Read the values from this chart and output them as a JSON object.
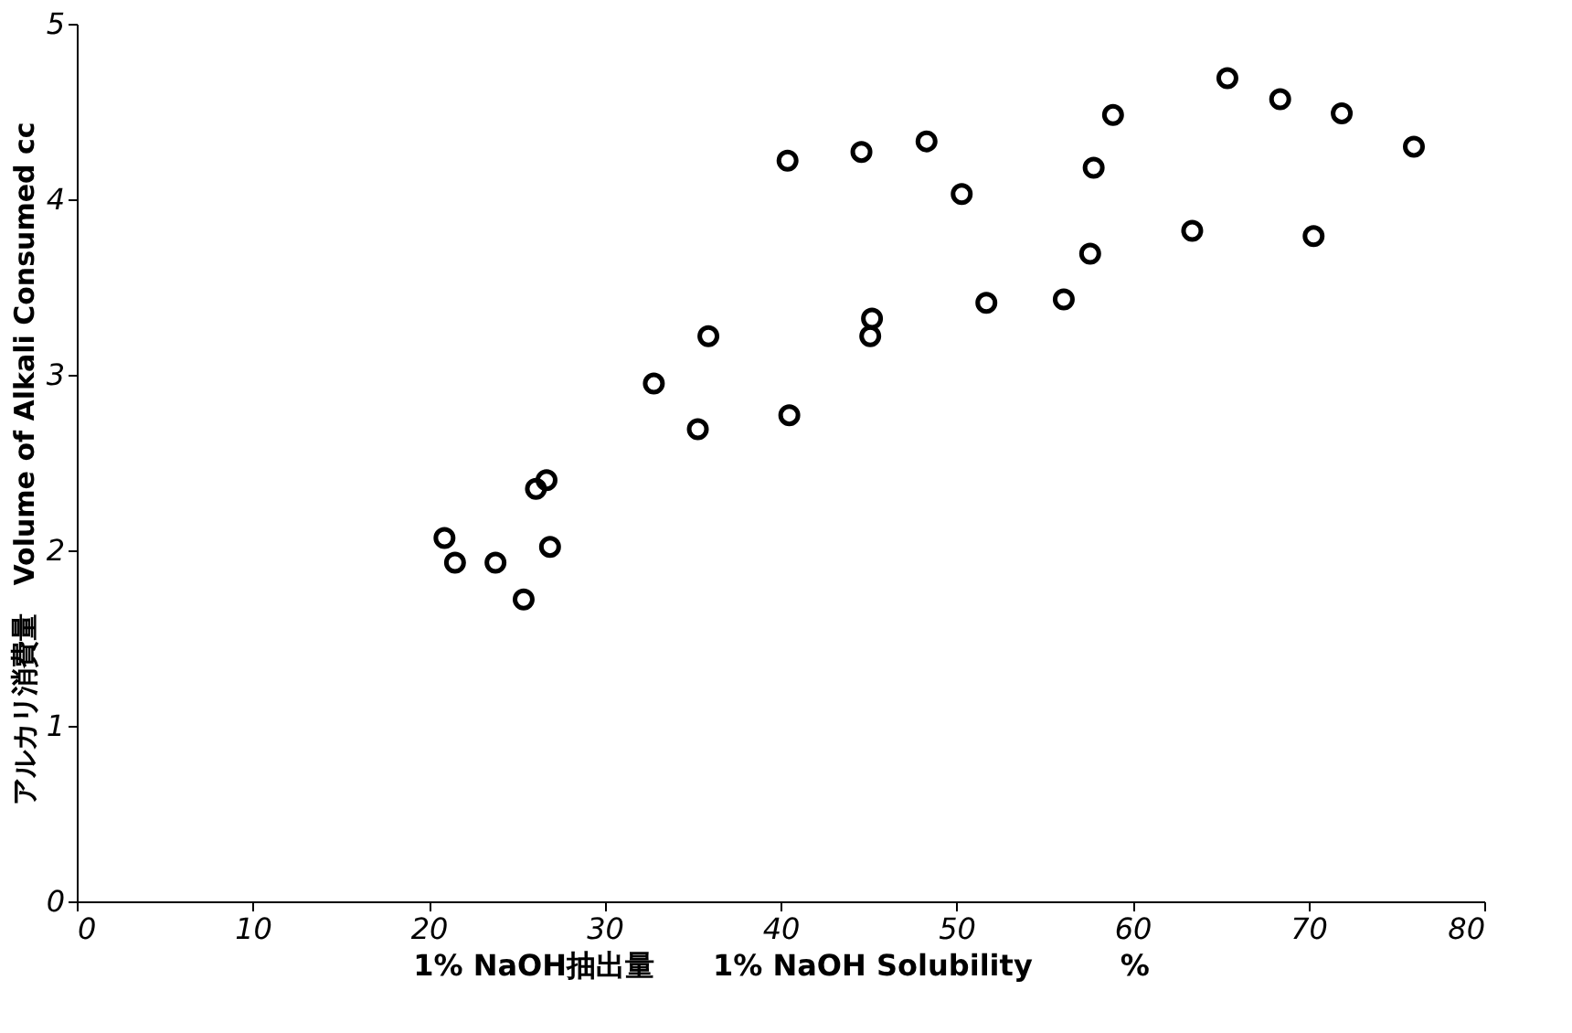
{
  "chart_data": {
    "type": "scatter",
    "xlabel": "1% NaOH抽出量　　1% NaOH Solubility　　　%",
    "ylabel": "アルカリ消費量　Volume of Alkali Consumed cc",
    "xlim": [
      0,
      80
    ],
    "xticks": [
      0,
      10,
      20,
      30,
      40,
      50,
      60,
      70,
      80
    ],
    "ylim": [
      0,
      5
    ],
    "yticks": [
      0,
      1,
      2,
      3,
      4,
      5
    ],
    "grid": false,
    "marker": "circle",
    "series": [
      {
        "color": "#000000",
        "x": [
          20.9,
          21.5,
          23.8,
          25.4,
          26.1,
          26.7,
          26.9,
          32.8,
          35.3,
          35.9,
          40.5,
          40.4,
          44.6,
          48.3,
          50.3,
          45.2,
          45.1,
          51.7,
          56.1,
          57.6,
          57.8,
          58.9,
          63.4,
          65.4,
          68.4,
          71.9,
          70.3,
          76.0
        ],
        "values": [
          2.07,
          1.93,
          1.93,
          1.72,
          2.35,
          2.4,
          2.02,
          2.95,
          2.69,
          3.22,
          2.77,
          4.22,
          4.27,
          4.33,
          4.03,
          3.32,
          3.22,
          3.41,
          3.43,
          3.69,
          4.18,
          4.48,
          3.82,
          4.69,
          4.57,
          4.49,
          3.79,
          4.3
        ]
      }
    ]
  }
}
